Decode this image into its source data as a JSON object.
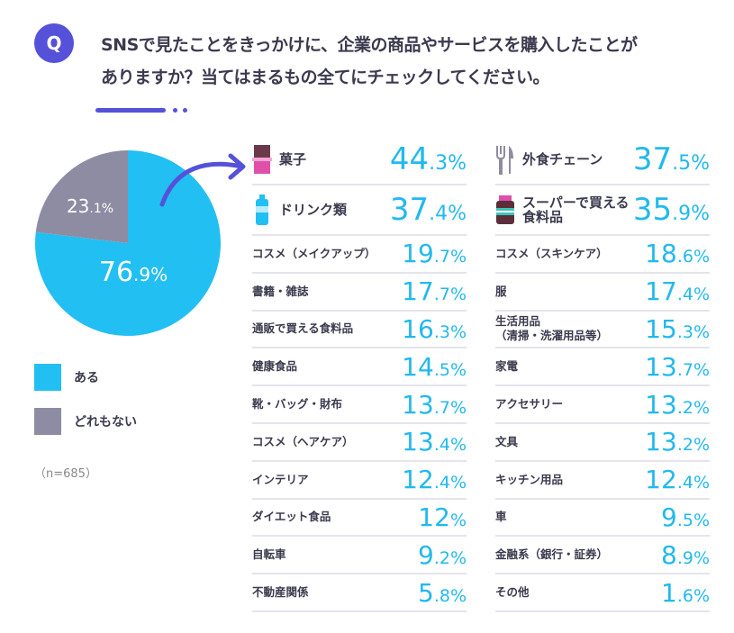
{
  "question": {
    "badge": "Q",
    "line1": "SNSで見たことをきっかけに、企業の商品やサービスを購入したことが",
    "line2": "ありますか？当てはまるもの全てにチェックしてください。"
  },
  "colors": {
    "accent": "#5552d9",
    "yes": "#22bff2",
    "no": "#8e8ca3",
    "value": "#22b9ee"
  },
  "chart_data": [
    {
      "type": "pie",
      "slices": [
        {
          "name": "ある",
          "value": 76.9,
          "label": "76.9%"
        },
        {
          "name": "どれもない",
          "value": 23.1,
          "label": "23.1%"
        }
      ],
      "legend": [
        "ある",
        "どれもない"
      ],
      "legend_placement": "bottom",
      "note": "（n=685）"
    },
    {
      "type": "table",
      "columns": [
        [
          {
            "label": "菓子",
            "value": "44.3",
            "icon": "chocolate-icon"
          },
          {
            "label": "ドリンク類",
            "value": "37.4",
            "icon": "bottle-icon"
          },
          {
            "label": "コスメ（メイクアップ）",
            "value": "19.7"
          },
          {
            "label": "書籍・雑誌",
            "value": "17.7"
          },
          {
            "label": "通販で買える食料品",
            "value": "16.3"
          },
          {
            "label": "健康食品",
            "value": "14.5"
          },
          {
            "label": "靴・バッグ・財布",
            "value": "13.7"
          },
          {
            "label": "コスメ（ヘアケア）",
            "value": "13.4"
          },
          {
            "label": "インテリア",
            "value": "12.4"
          },
          {
            "label": "ダイエット食品",
            "value": "12"
          },
          {
            "label": "自転車",
            "value": "9.2"
          },
          {
            "label": "不動産関係",
            "value": "5.8"
          }
        ],
        [
          {
            "label": "外食チェーン",
            "value": "37.5",
            "icon": "fork-knife-icon"
          },
          {
            "label": "スーパーで買える\n食料品",
            "value": "35.9",
            "icon": "jar-icon"
          },
          {
            "label": "コスメ（スキンケア）",
            "value": "18.6"
          },
          {
            "label": "服",
            "value": "17.4"
          },
          {
            "label": "生活用品\n（清掃・洗濯用品等）",
            "value": "15.3"
          },
          {
            "label": "家電",
            "value": "13.7"
          },
          {
            "label": "アクセサリー",
            "value": "13.2"
          },
          {
            "label": "文具",
            "value": "13.2"
          },
          {
            "label": "キッチン用品",
            "value": "12.4"
          },
          {
            "label": "車",
            "value": "9.5"
          },
          {
            "label": "金融系（銀行・証券）",
            "value": "8.9"
          },
          {
            "label": "その他",
            "value": "1.6"
          }
        ]
      ]
    }
  ]
}
